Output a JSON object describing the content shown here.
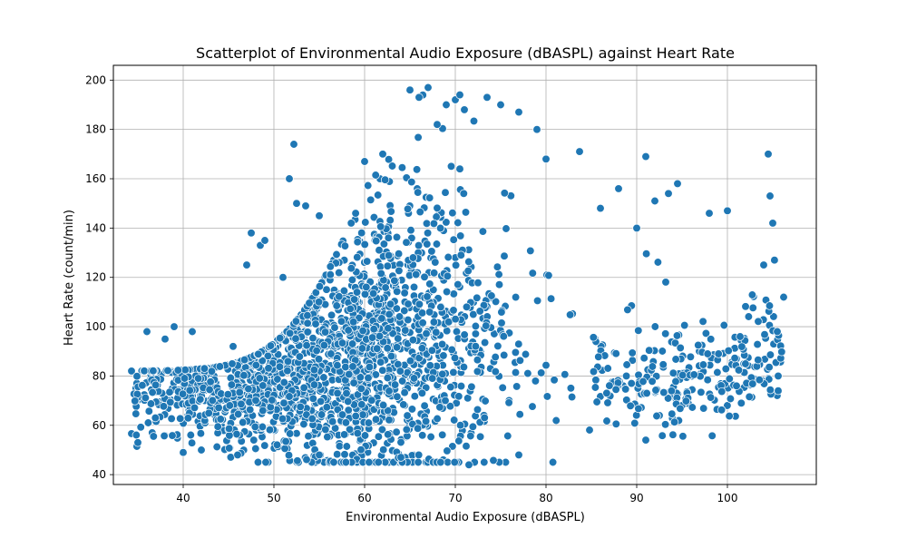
{
  "chart_data": {
    "type": "scatter",
    "title": "Scatterplot of Environmental Audio Exposure (dBASPL) against Heart Rate",
    "xlabel": "Environmental Audio Exposure (dBASPL)",
    "ylabel": "Heart Rate (count/min)",
    "xlim": [
      32.3,
      109.8
    ],
    "ylim": [
      36,
      206
    ],
    "xticks": [
      40,
      50,
      60,
      70,
      80,
      90,
      100
    ],
    "yticks": [
      40,
      60,
      80,
      100,
      120,
      140,
      160,
      180,
      200
    ],
    "grid": true,
    "point_color": "#1f77b4",
    "point_edge_color": "#ffffff",
    "notable_points": [
      {
        "x": 35.0,
        "y": 53
      },
      {
        "x": 36.0,
        "y": 98
      },
      {
        "x": 38.0,
        "y": 95
      },
      {
        "x": 39.0,
        "y": 100
      },
      {
        "x": 40.0,
        "y": 49
      },
      {
        "x": 41.0,
        "y": 98
      },
      {
        "x": 42.0,
        "y": 50
      },
      {
        "x": 45.5,
        "y": 92
      },
      {
        "x": 46.0,
        "y": 48
      },
      {
        "x": 47.0,
        "y": 125
      },
      {
        "x": 47.5,
        "y": 138
      },
      {
        "x": 48.5,
        "y": 133
      },
      {
        "x": 49.0,
        "y": 135
      },
      {
        "x": 51.0,
        "y": 120
      },
      {
        "x": 51.7,
        "y": 160
      },
      {
        "x": 52.2,
        "y": 174
      },
      {
        "x": 52.5,
        "y": 150
      },
      {
        "x": 53.5,
        "y": 149
      },
      {
        "x": 55.0,
        "y": 48
      },
      {
        "x": 55.0,
        "y": 145
      },
      {
        "x": 60.0,
        "y": 167
      },
      {
        "x": 62.0,
        "y": 170
      },
      {
        "x": 64.0,
        "y": 47
      },
      {
        "x": 65.0,
        "y": 196
      },
      {
        "x": 66.0,
        "y": 193
      },
      {
        "x": 67.0,
        "y": 197
      },
      {
        "x": 68.0,
        "y": 182
      },
      {
        "x": 69.0,
        "y": 190
      },
      {
        "x": 70.0,
        "y": 192
      },
      {
        "x": 70.5,
        "y": 194
      },
      {
        "x": 71.0,
        "y": 188
      },
      {
        "x": 71.5,
        "y": 44
      },
      {
        "x": 73.5,
        "y": 193
      },
      {
        "x": 75.0,
        "y": 190
      },
      {
        "x": 77.0,
        "y": 187
      },
      {
        "x": 77.0,
        "y": 48
      },
      {
        "x": 79.0,
        "y": 180
      },
      {
        "x": 80.0,
        "y": 168
      },
      {
        "x": 83.7,
        "y": 171
      },
      {
        "x": 86.0,
        "y": 148
      },
      {
        "x": 88.0,
        "y": 156
      },
      {
        "x": 90.0,
        "y": 140
      },
      {
        "x": 91.0,
        "y": 169
      },
      {
        "x": 91.0,
        "y": 54
      },
      {
        "x": 92.0,
        "y": 151
      },
      {
        "x": 93.5,
        "y": 154
      },
      {
        "x": 94.5,
        "y": 158
      },
      {
        "x": 98.0,
        "y": 146
      },
      {
        "x": 100.0,
        "y": 147
      },
      {
        "x": 101.0,
        "y": 76
      },
      {
        "x": 104.0,
        "y": 125
      },
      {
        "x": 104.5,
        "y": 170
      },
      {
        "x": 104.7,
        "y": 153
      },
      {
        "x": 105.0,
        "y": 142
      },
      {
        "x": 105.5,
        "y": 98
      },
      {
        "x": 105.6,
        "y": 74
      },
      {
        "x": 105.6,
        "y": 80
      },
      {
        "x": 106.2,
        "y": 112
      }
    ]
  }
}
